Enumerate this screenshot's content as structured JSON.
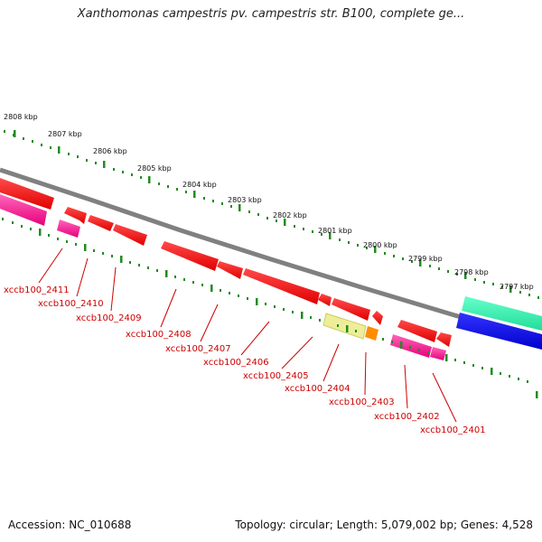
{
  "title": "Xanthomonas campestris pv. campestris str. B100, complete ge...",
  "accession": "Accession: NC_010688",
  "topology": "Topology: circular; Length: 5,079,002 bp; Genes: 4,528",
  "colors": {
    "backbone": "#808080",
    "tick_marks": "#228b22",
    "gene_label": "#cc0000",
    "cds": "#ff0000",
    "pink_feature": "#ff3399",
    "khaki_feature": "#eeee99",
    "orange_feature": "#ff8c00",
    "green_feature": "#33ffaa",
    "blue_feature": "#0000ee"
  },
  "scale_labels": [
    "2808 kbp",
    "2807 kbp",
    "2806 kbp",
    "2805 kbp",
    "2804 kbp",
    "2803 kbp",
    "2802 kbp",
    "2801 kbp",
    "2800 kbp",
    "2799 kbp",
    "2798 kbp",
    "2797 kbp"
  ],
  "gene_labels": [
    "xccb100_2411",
    "xccb100_2410",
    "xccb100_2409",
    "xccb100_2408",
    "xccb100_2407",
    "xccb100_2406",
    "xccb100_2405",
    "xccb100_2404",
    "xccb100_2403",
    "xccb100_2402",
    "xccb100_2401"
  ]
}
